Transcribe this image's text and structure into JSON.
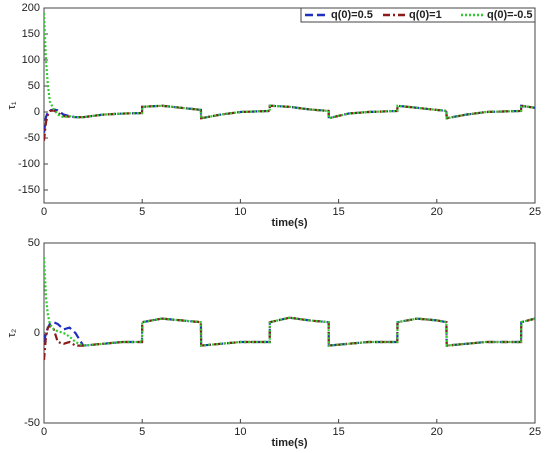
{
  "chart_data": [
    {
      "type": "line",
      "x_label": "time(s)",
      "y_label": "τ₁",
      "legend": "upper right",
      "x": [
        0,
        0.1,
        0.2,
        0.3,
        0.5,
        0.7,
        1,
        1.3,
        1.6,
        2,
        3,
        4,
        4.99,
        5,
        6,
        7,
        7.99,
        8,
        9,
        10,
        11.49,
        11.5,
        12.5,
        13.5,
        14.49,
        14.5,
        15.5,
        16.5,
        17.99,
        18,
        19,
        20,
        20.49,
        20.5,
        21.5,
        22.5,
        24.29,
        24.3,
        25
      ],
      "xlim": [
        0,
        25
      ],
      "xticks": [
        0,
        5,
        10,
        15,
        20,
        25
      ],
      "ylim": [
        -175,
        200
      ],
      "yticks": [
        -150,
        -100,
        -50,
        0,
        50,
        100,
        150,
        200
      ],
      "series": [
        {
          "name": "q(0)=0.5",
          "color": "#1f2fbf",
          "linestyle": "dashed",
          "values": [
            -40,
            -10,
            0,
            3,
            5,
            3,
            -5,
            -8,
            -10,
            -10,
            -5,
            -3,
            -2,
            10,
            12,
            8,
            4,
            -12,
            -5,
            0,
            2,
            12,
            10,
            5,
            2,
            -12,
            -3,
            0,
            2,
            12,
            8,
            4,
            2,
            -12,
            -5,
            0,
            2,
            12,
            8
          ]
        },
        {
          "name": "q(0)=1",
          "color": "#8b1a1a",
          "linestyle": "dashdot",
          "values": [
            -55,
            -20,
            -5,
            2,
            3,
            -2,
            -8,
            -9,
            -10,
            -10,
            -5,
            -3,
            -2,
            10,
            12,
            8,
            4,
            -12,
            -5,
            0,
            2,
            12,
            10,
            5,
            2,
            -12,
            -3,
            0,
            2,
            12,
            8,
            4,
            2,
            -12,
            -5,
            0,
            2,
            12,
            8
          ]
        },
        {
          "name": "q(0)=-0.5",
          "color": "#2ecc2e",
          "linestyle": "dotted",
          "values": [
            190,
            100,
            50,
            20,
            5,
            -5,
            -10,
            -8,
            -10,
            -10,
            -5,
            -3,
            -2,
            10,
            12,
            8,
            4,
            -12,
            -5,
            0,
            2,
            12,
            10,
            5,
            2,
            -12,
            -3,
            0,
            2,
            12,
            8,
            4,
            2,
            -12,
            -5,
            0,
            2,
            12,
            8
          ]
        }
      ]
    },
    {
      "type": "line",
      "x_label": "time(s)",
      "y_label": "τ₂",
      "x": [
        0,
        0.1,
        0.2,
        0.3,
        0.5,
        0.7,
        1,
        1.3,
        1.6,
        2,
        3,
        4,
        4.99,
        5,
        6,
        7,
        7.99,
        8,
        9,
        10,
        11.49,
        11.5,
        12.5,
        13.5,
        14.49,
        14.5,
        15.5,
        16.5,
        17.99,
        18,
        19,
        20,
        20.49,
        20.5,
        21.5,
        22.5,
        24.29,
        24.3,
        25
      ],
      "xlim": [
        0,
        25
      ],
      "xticks": [
        0,
        5,
        10,
        15,
        20,
        25
      ],
      "ylim": [
        -50,
        50
      ],
      "yticks": [
        -50,
        0,
        50
      ],
      "series": [
        {
          "color": "#1f2fbf",
          "linestyle": "dashed",
          "values": [
            -5,
            0,
            3,
            5,
            6,
            5,
            2,
            3,
            0,
            -7,
            -6,
            -5,
            -5,
            6,
            8,
            7,
            6,
            -7,
            -6,
            -5,
            -5,
            6,
            8.5,
            7,
            6,
            -7,
            -6,
            -5,
            -5,
            6,
            8,
            7,
            6,
            -7,
            -6,
            -5,
            -5,
            6,
            8
          ]
        },
        {
          "color": "#8b1a1a",
          "linestyle": "dashdot",
          "values": [
            -15,
            -2,
            3,
            4,
            2,
            -5,
            -6,
            -5,
            -7,
            -7,
            -6,
            -5,
            -5,
            6,
            8,
            7,
            6,
            -7,
            -6,
            -5,
            -5,
            6,
            8.5,
            7,
            6,
            -7,
            -6,
            -5,
            -5,
            6,
            8,
            7,
            6,
            -7,
            -6,
            -5,
            -5,
            6,
            8
          ]
        },
        {
          "color": "#2ecc2e",
          "linestyle": "dotted",
          "values": [
            42,
            20,
            10,
            5,
            2,
            1,
            0,
            -2,
            -5,
            -7,
            -6,
            -5,
            -5,
            6,
            8,
            7,
            6,
            -7,
            -6,
            -5,
            -5,
            6,
            8.5,
            7,
            6,
            -7,
            -6,
            -5,
            -5,
            6,
            8,
            7,
            6,
            -7,
            -6,
            -5,
            -5,
            6,
            8
          ]
        }
      ]
    }
  ]
}
